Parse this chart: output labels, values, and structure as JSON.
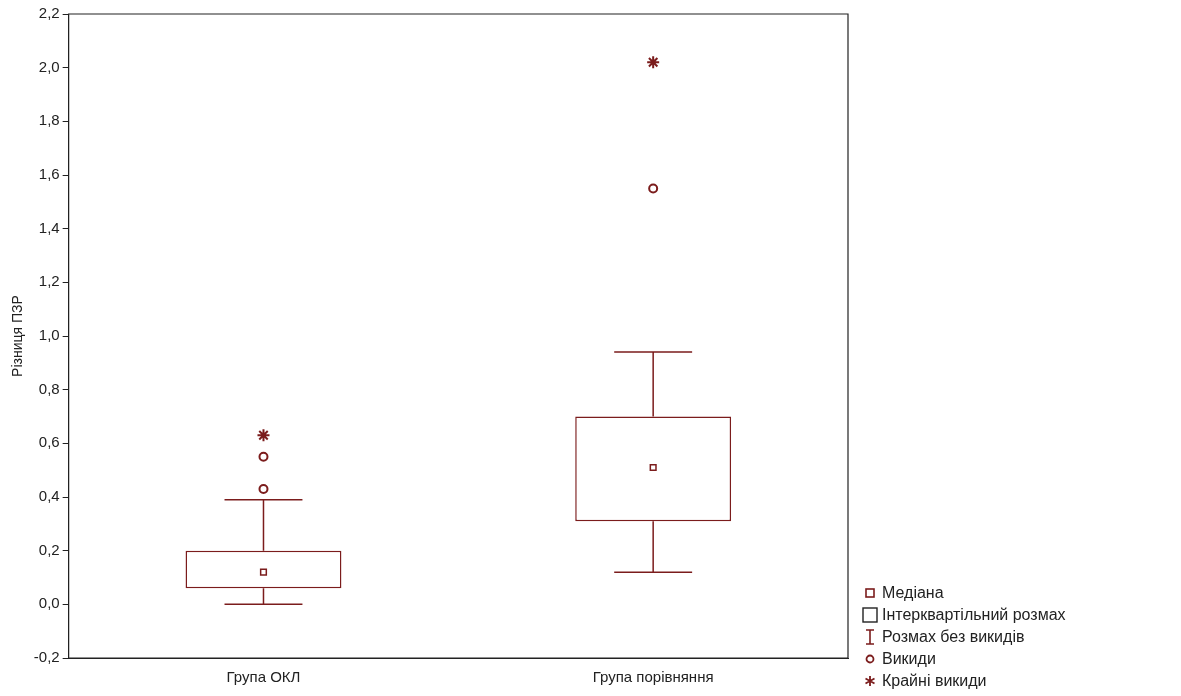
{
  "chart_data": {
    "type": "box",
    "ylabel": "Різниця ПЗР",
    "categories": [
      "Група ОКЛ",
      "Група порівняння"
    ],
    "ylim": [
      -0.2,
      2.2
    ],
    "yticks": [
      {
        "value": -0.2,
        "label": "-0,2"
      },
      {
        "value": 0,
        "label": "0,0"
      },
      {
        "value": 0.2,
        "label": "0,2"
      },
      {
        "value": 0.4,
        "label": "0,4"
      },
      {
        "value": 0.6,
        "label": "0,6"
      },
      {
        "value": 0.8,
        "label": "0,8"
      },
      {
        "value": 1,
        "label": "1,0"
      },
      {
        "value": 1.2,
        "label": "1,2"
      },
      {
        "value": 1.4,
        "label": "1,4"
      },
      {
        "value": 1.6,
        "label": "1,6"
      },
      {
        "value": 1.8,
        "label": "1,8"
      },
      {
        "value": 2,
        "label": "2,0"
      },
      {
        "value": 2.2,
        "label": "2,2"
      }
    ],
    "grid": false,
    "annotations": [
      "Медіана",
      "Інтерквартільний розмах",
      "Розмах без викидів",
      "Викиди",
      "Крайні викиди"
    ],
    "series": [
      {
        "color": "#7b1c1c",
        "boxes": [
          {
            "low": 0.0,
            "q1": 0.06,
            "median": 0.12,
            "q3": 0.2,
            "high": 0.39,
            "outliers": [
              0.43,
              0.55
            ]
          },
          {
            "low": 0.12,
            "q1": 0.31,
            "median": 0.51,
            "q3": 0.7,
            "high": 0.94,
            "outliers": [
              1.55
            ]
          }
        ]
      },
      {
        "type": "scatter",
        "color": "#7b1c1c",
        "marker": "cross",
        "x": [
          "Група ОКЛ",
          "Група порівняння"
        ],
        "values": [
          0.63,
          2.02
        ]
      }
    ]
  }
}
